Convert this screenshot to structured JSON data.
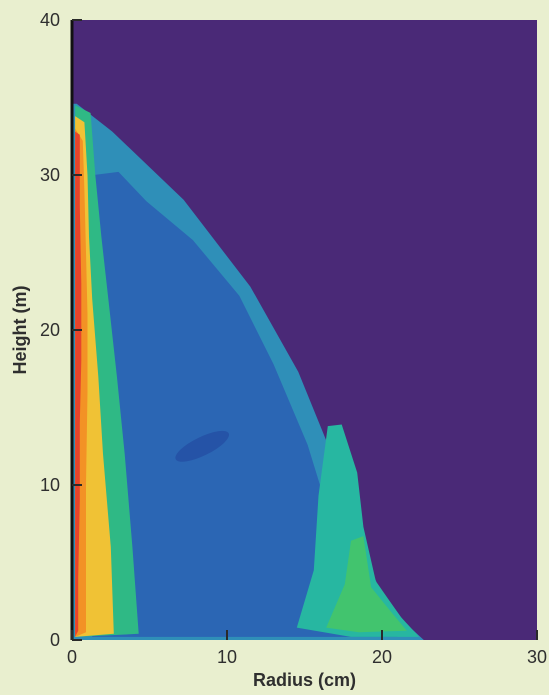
{
  "chart_data": {
    "type": "heatmap",
    "title": "",
    "xlabel": "Radius (cm)",
    "ylabel": "Height (m)",
    "xlim": [
      0,
      30
    ],
    "ylim": [
      0,
      40
    ],
    "x_ticks": [
      "0",
      "10",
      "20",
      "30"
    ],
    "y_ticks": [
      "0",
      "10",
      "20",
      "30",
      "40"
    ],
    "grid": false,
    "legend": "none",
    "colors": {
      "background": "#4a2977",
      "outer_shell": "#2f8fb8",
      "interior": "#2b66b4",
      "mid_band": "#27b7a1",
      "bright_band": "#42c46e",
      "core_yellow": "#f0c235",
      "core_orange": "#f39225",
      "core_red": "#e7442c",
      "page_bg": "#e9efcf"
    },
    "regions": [
      {
        "name": "outer-shell",
        "color": "#2f8fb8",
        "boundary": [
          [
            0,
            0
          ],
          [
            0,
            34.6
          ],
          [
            0.3,
            34.6
          ],
          [
            2.6,
            32.8
          ],
          [
            7.2,
            28.4
          ],
          [
            11.5,
            22.8
          ],
          [
            14.6,
            17.3
          ],
          [
            16.8,
            11.9
          ],
          [
            18.2,
            7.4
          ],
          [
            19.7,
            3.6
          ],
          [
            21.5,
            1.1
          ],
          [
            22.7,
            0.0
          ]
        ]
      },
      {
        "name": "interior",
        "color": "#2b66b4",
        "boundary": [
          [
            1.3,
            0.2
          ],
          [
            1.4,
            30.0
          ],
          [
            3.0,
            30.2
          ],
          [
            4.8,
            28.3
          ],
          [
            7.8,
            25.8
          ],
          [
            10.8,
            22.2
          ],
          [
            13.0,
            17.8
          ],
          [
            15.2,
            12.6
          ],
          [
            16.4,
            8.7
          ],
          [
            17.9,
            4.4
          ],
          [
            19.8,
            1.6
          ],
          [
            21.0,
            0.2
          ]
        ]
      },
      {
        "name": "mid-band",
        "color": "#27b7a1",
        "boundary": [
          [
            14.5,
            0.8
          ],
          [
            15.6,
            4.5
          ],
          [
            15.9,
            9.3
          ],
          [
            16.5,
            13.8
          ],
          [
            17.4,
            13.9
          ],
          [
            18.4,
            10.8
          ],
          [
            18.8,
            7.3
          ],
          [
            19.6,
            3.8
          ],
          [
            21.2,
            1.5
          ],
          [
            22.4,
            0.2
          ],
          [
            18.0,
            0.2
          ]
        ]
      },
      {
        "name": "bright-band",
        "color": "#42c46e",
        "boundary": [
          [
            16.4,
            0.8
          ],
          [
            17.6,
            3.6
          ],
          [
            18.0,
            6.4
          ],
          [
            18.8,
            6.7
          ],
          [
            19.3,
            3.4
          ],
          [
            20.6,
            1.8
          ],
          [
            21.6,
            0.6
          ],
          [
            18.5,
            0.5
          ]
        ]
      },
      {
        "name": "core-green",
        "color": "#2fb985",
        "boundary": [
          [
            0.2,
            0.2
          ],
          [
            0.2,
            34.5
          ],
          [
            1.2,
            34.0
          ],
          [
            1.5,
            30.0
          ],
          [
            1.9,
            26.0
          ],
          [
            2.4,
            21.5
          ],
          [
            2.9,
            17.0
          ],
          [
            3.4,
            12.0
          ],
          [
            3.9,
            6.0
          ],
          [
            4.3,
            0.4
          ]
        ]
      },
      {
        "name": "core-yellow",
        "color": "#f0c235",
        "boundary": [
          [
            0.2,
            0.2
          ],
          [
            0.2,
            33.8
          ],
          [
            0.8,
            33.4
          ],
          [
            1.0,
            30.0
          ],
          [
            1.1,
            26.0
          ],
          [
            1.3,
            22.0
          ],
          [
            1.7,
            17.0
          ],
          [
            2.0,
            12.0
          ],
          [
            2.5,
            6.0
          ],
          [
            2.7,
            0.4
          ]
        ]
      },
      {
        "name": "core-orange",
        "color": "#f39225",
        "boundary": [
          [
            0.2,
            0.2
          ],
          [
            0.2,
            33.0
          ],
          [
            0.7,
            32.2
          ],
          [
            0.8,
            29.0
          ],
          [
            0.9,
            25.0
          ],
          [
            1.0,
            21.0
          ],
          [
            1.0,
            16.0
          ],
          [
            0.9,
            10.0
          ],
          [
            0.9,
            5.0
          ],
          [
            0.9,
            0.5
          ]
        ]
      },
      {
        "name": "core-red",
        "color": "#e7442c",
        "boundary": [
          [
            0.2,
            0.2
          ],
          [
            0.2,
            32.8
          ],
          [
            0.5,
            32.6
          ],
          [
            0.5,
            28.0
          ],
          [
            0.6,
            23.0
          ],
          [
            0.6,
            18.0
          ],
          [
            0.5,
            14.0
          ],
          [
            0.5,
            9.0
          ],
          [
            0.4,
            4.0
          ],
          [
            0.4,
            0.6
          ]
        ]
      }
    ],
    "features": [
      {
        "name": "interior-spot",
        "color": "#244ea3",
        "center": [
          8.4,
          12.5
        ],
        "radius": [
          1.9,
          0.6
        ],
        "angle": -26
      }
    ]
  }
}
